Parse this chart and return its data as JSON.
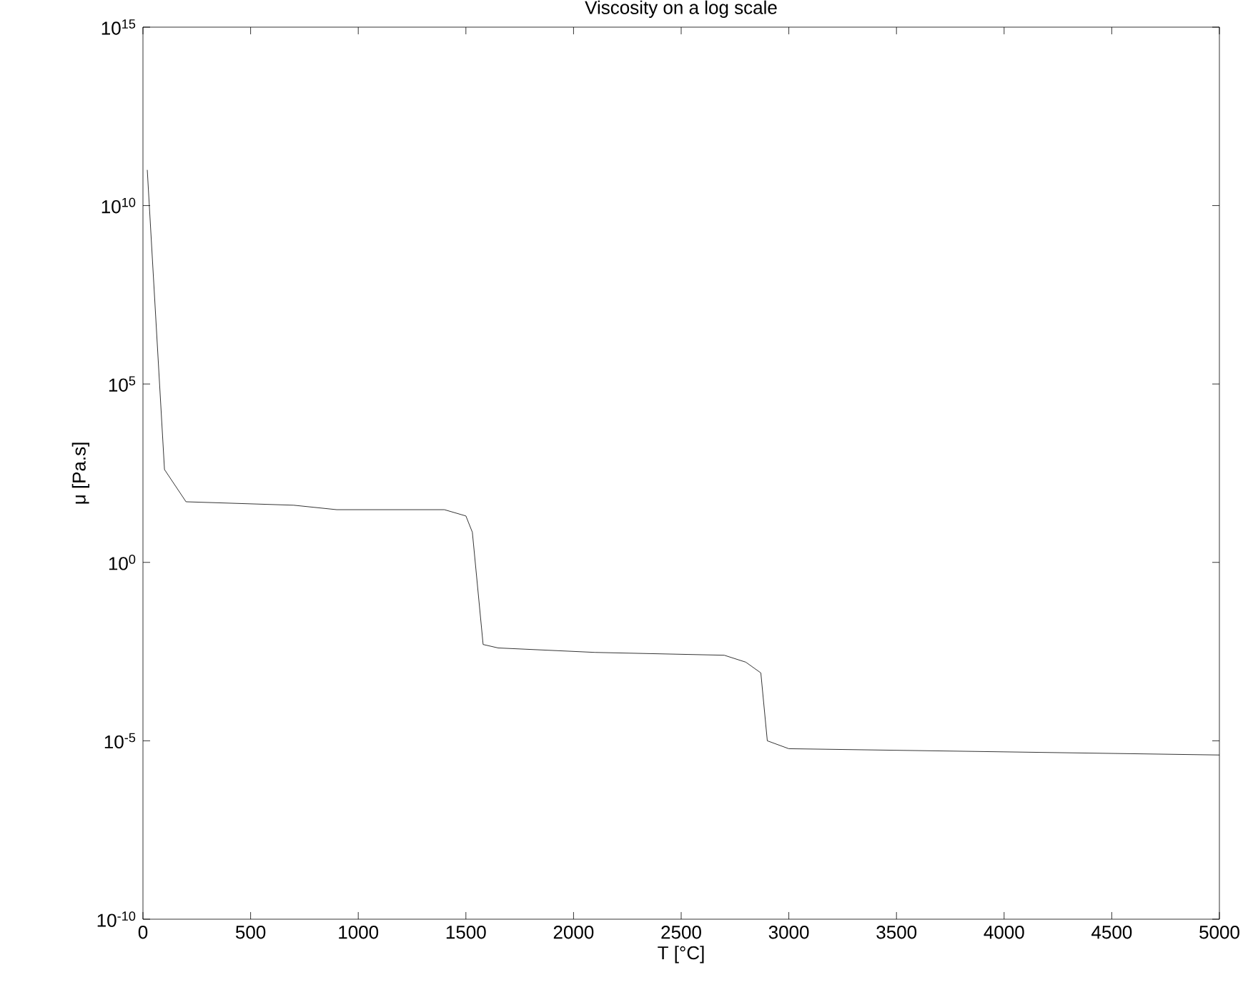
{
  "chart_data": {
    "type": "line",
    "title": "Viscosity on a log scale",
    "xlabel": "T [°C]",
    "ylabel": "μ [Pa.s]",
    "x": [
      20,
      100,
      200,
      700,
      900,
      1400,
      1500,
      1530,
      1580,
      1650,
      2100,
      2700,
      2800,
      2870,
      2900,
      3000,
      5000
    ],
    "values": [
      100000000000,
      400,
      50,
      40,
      30,
      30,
      20,
      7,
      0.005,
      0.004,
      0.003,
      0.0025,
      0.0016,
      0.0008,
      1e-05,
      6e-06,
      4e-06
    ],
    "color": "#000000",
    "log": "y",
    "xlim": [
      0,
      5000
    ],
    "ylim": [
      1e-10,
      1000000000000000.0
    ],
    "xticks": [
      0,
      500,
      1000,
      1500,
      2000,
      2500,
      3000,
      3500,
      4000,
      4500,
      5000
    ],
    "yticks": [
      {
        "value": 1e-10,
        "label": "10$^{-10}$"
      },
      {
        "value": 1e-05,
        "label": "10$^{-5}$"
      },
      {
        "value": 1,
        "label": "10$^{0}$"
      },
      {
        "value": 100000,
        "label": "10$^{5}$"
      },
      {
        "value": 10000000000,
        "label": "10$^{10}$"
      },
      {
        "value": 1000000000000000.0,
        "label": "10$^{15}$"
      }
    ]
  }
}
